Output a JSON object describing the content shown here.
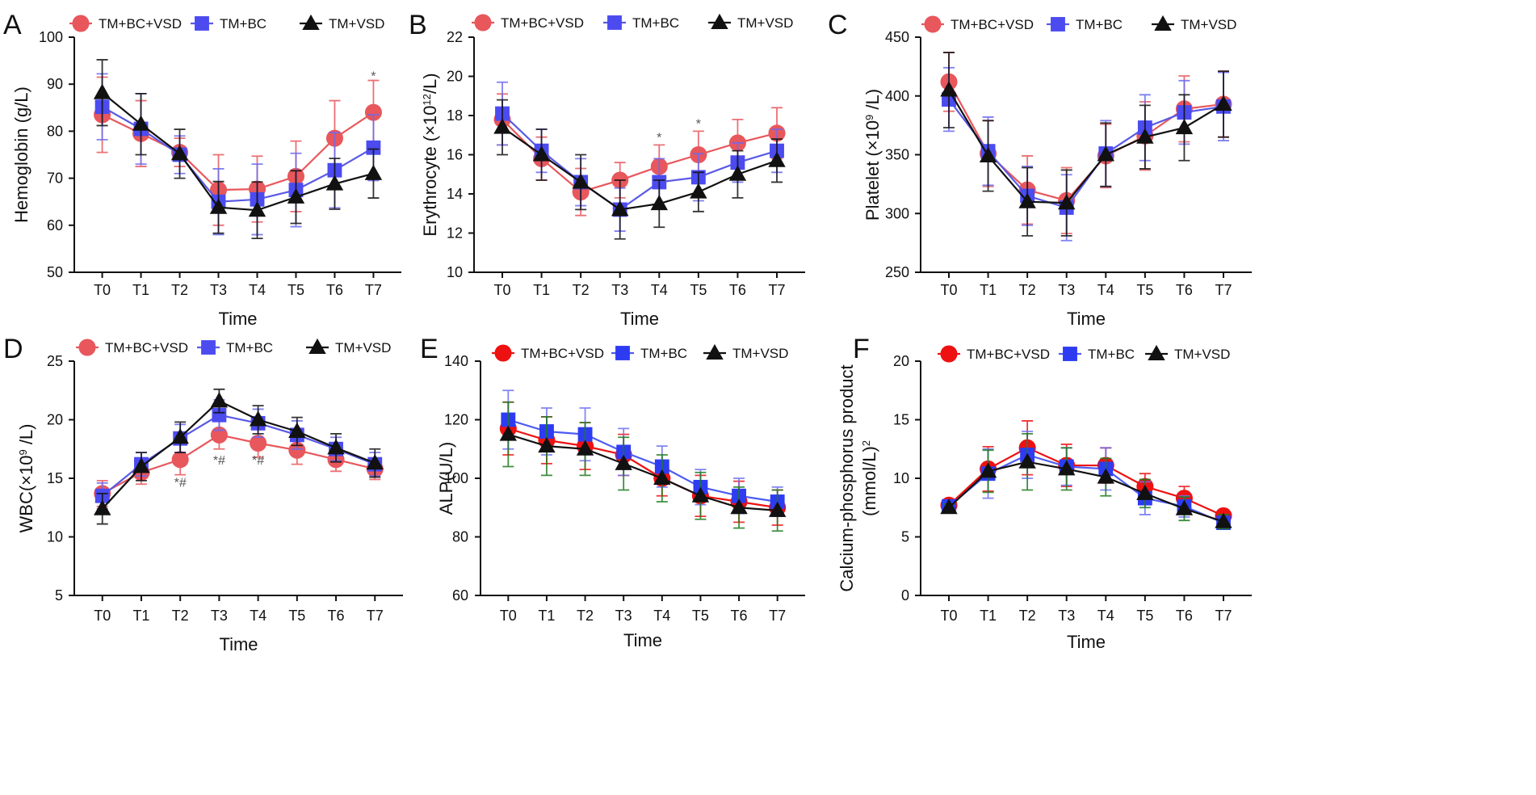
{
  "figure": {
    "series_styles": [
      {
        "name": "TM+BC+VSD",
        "marker": "circle",
        "line_color": "#e8575c",
        "marker_color": "#e8575c",
        "error_color": "#e8575c"
      },
      {
        "name": "TM+BC",
        "marker": "square",
        "line_color": "#5a5ae6",
        "marker_color": "#4b4bf0",
        "error_color": "#6a6af0"
      },
      {
        "name": "TM+VSD",
        "marker": "triangle",
        "line_color": "#111111",
        "marker_color": "#111111",
        "error_color": "#111111"
      }
    ],
    "series_styles_ef": [
      {
        "name": "TM+BC+VSD",
        "marker": "circle",
        "line_color": "#ee1111",
        "marker_color": "#ee1111",
        "error_color": "#ee1111"
      },
      {
        "name": "TM+BC",
        "marker": "square",
        "line_color": "#4d5cf2",
        "marker_color": "#2d3cf2",
        "error_color": "#6d70f2"
      },
      {
        "name": "TM+VSD",
        "marker": "triangle",
        "line_color": "#111111",
        "marker_color": "#111111",
        "error_color": "#1d7a1d"
      }
    ]
  },
  "chart_data": [
    {
      "panel": "A",
      "type": "line",
      "ylabel": "Hemoglobin (g/L)",
      "xlabel": "Time",
      "categories": [
        "T0",
        "T1",
        "T2",
        "T3",
        "T4",
        "T5",
        "T6",
        "T7"
      ],
      "ylim": [
        50,
        100
      ],
      "yticks": [
        50,
        60,
        70,
        80,
        90,
        100
      ],
      "series": [
        {
          "name": "TM+BC+VSD",
          "values": [
            83.5,
            79.5,
            75.5,
            67.5,
            67.7,
            70.4,
            78.5,
            84.0
          ],
          "errors": [
            8,
            7,
            3,
            7.5,
            7,
            7.5,
            8,
            6.8
          ]
        },
        {
          "name": "TM+BC",
          "values": [
            85.2,
            80.5,
            75.0,
            65.0,
            65.5,
            67.5,
            71.7,
            76.5
          ],
          "errors": [
            7,
            7.5,
            4,
            7,
            7.5,
            7.8,
            8,
            7
          ]
        },
        {
          "name": "TM+VSD",
          "values": [
            88.2,
            81.5,
            75.2,
            63.8,
            63.2,
            66.0,
            68.8,
            71.0
          ],
          "errors": [
            7,
            6.5,
            5.2,
            5.5,
            6,
            5.6,
            5.4,
            5.2
          ]
        }
      ],
      "annotations": [
        {
          "category": "T7",
          "value": 91.8,
          "text": "*"
        }
      ]
    },
    {
      "panel": "B",
      "type": "line",
      "ylabel": "Erythrocyte  (×10^12/L)",
      "xlabel": "Time",
      "categories": [
        "T0",
        "T1",
        "T2",
        "T3",
        "T4",
        "T5",
        "T6",
        "T7"
      ],
      "ylim": [
        10,
        22
      ],
      "yticks": [
        10,
        12,
        14,
        16,
        18,
        20,
        22
      ],
      "series": [
        {
          "name": "TM+BC+VSD",
          "values": [
            17.8,
            15.8,
            14.1,
            14.7,
            15.4,
            16.0,
            16.6,
            17.1
          ],
          "errors": [
            1.3,
            1.1,
            1.2,
            0.9,
            1.1,
            1.2,
            1.2,
            1.3
          ]
        },
        {
          "name": "TM+BC",
          "values": [
            18.1,
            16.2,
            14.6,
            13.2,
            14.6,
            14.85,
            15.6,
            16.2
          ],
          "errors": [
            1.6,
            1.1,
            1.2,
            1.1,
            1.2,
            1.2,
            1.0,
            1.1
          ]
        },
        {
          "name": "TM+VSD",
          "values": [
            17.4,
            16.0,
            14.6,
            13.2,
            13.5,
            14.1,
            15.0,
            15.7
          ],
          "errors": [
            1.4,
            1.3,
            1.4,
            1.5,
            1.2,
            1.0,
            1.2,
            1.1
          ]
        }
      ],
      "annotations": [
        {
          "category": "T4",
          "value": 16.9,
          "text": "*"
        },
        {
          "category": "T5",
          "value": 17.6,
          "text": "*"
        }
      ]
    },
    {
      "panel": "C",
      "type": "line",
      "ylabel": "Platelet (×10^9 /L)",
      "xlabel": "Time",
      "categories": [
        "T0",
        "T1",
        "T2",
        "T3",
        "T4",
        "T5",
        "T6",
        "T7"
      ],
      "ylim": [
        250,
        450
      ],
      "yticks": [
        250,
        300,
        350,
        400,
        450
      ],
      "series": [
        {
          "name": "TM+BC+VSD",
          "values": [
            412,
            351,
            320,
            311,
            349,
            366,
            389,
            393
          ],
          "errors": [
            25,
            28,
            29,
            28,
            27,
            29,
            28,
            28
          ]
        },
        {
          "name": "TM+BC",
          "values": [
            397,
            353,
            315,
            305,
            351,
            373,
            386,
            391
          ],
          "errors": [
            27,
            29,
            25,
            28,
            28,
            28,
            27,
            29
          ]
        },
        {
          "name": "TM+VSD",
          "values": [
            405,
            349,
            310,
            309,
            350,
            365,
            373,
            393
          ],
          "errors": [
            32,
            30,
            29,
            28,
            27,
            27,
            28,
            28
          ]
        }
      ],
      "annotations": []
    },
    {
      "panel": "D",
      "type": "line",
      "ylabel": "WBC(×10^9 /L)",
      "xlabel": "Time",
      "categories": [
        "T0",
        "T1",
        "T2",
        "T3",
        "T4",
        "T5",
        "T6",
        "T7"
      ],
      "ylim": [
        5,
        25
      ],
      "yticks": [
        5,
        10,
        15,
        20,
        25
      ],
      "series": [
        {
          "name": "TM+BC+VSD",
          "values": [
            13.7,
            15.5,
            16.6,
            18.7,
            18.0,
            17.4,
            16.6,
            15.8
          ],
          "errors": [
            1.1,
            1.0,
            1.3,
            1.2,
            1.2,
            1.2,
            1.0,
            0.9
          ]
        },
        {
          "name": "TM+BC",
          "values": [
            13.5,
            16.2,
            18.4,
            20.4,
            19.7,
            18.7,
            17.5,
            16.2
          ],
          "errors": [
            1.1,
            1.0,
            1.2,
            1.3,
            1.2,
            1.2,
            1.0,
            1.0
          ]
        },
        {
          "name": "TM+VSD",
          "values": [
            12.4,
            16.0,
            18.5,
            21.6,
            20.0,
            19.0,
            17.6,
            16.3
          ],
          "errors": [
            1.3,
            1.2,
            1.3,
            1.0,
            1.2,
            1.2,
            1.2,
            1.2
          ]
        }
      ],
      "annotations": [
        {
          "category": "T2",
          "value": 14.7,
          "text": "*#"
        },
        {
          "category": "T3",
          "value": 16.6,
          "text": "*#"
        },
        {
          "category": "T4",
          "value": 16.6,
          "text": "*#"
        }
      ]
    },
    {
      "panel": "E",
      "type": "line",
      "ylabel": "ALP(U/L)",
      "xlabel": "Time",
      "categories": [
        "T0",
        "T1",
        "T2",
        "T3",
        "T4",
        "T5",
        "T6",
        "T7"
      ],
      "ylim": [
        60,
        140
      ],
      "yticks": [
        60,
        80,
        100,
        120,
        140
      ],
      "series": [
        {
          "name": "TM+BC+VSD",
          "values": [
            117,
            113,
            111,
            108,
            100,
            94,
            92,
            90
          ],
          "errors": [
            9,
            8,
            8,
            7,
            6,
            7,
            7,
            6
          ]
        },
        {
          "name": "TM+BC",
          "values": [
            120,
            116,
            115,
            109,
            104,
            97,
            94,
            92
          ],
          "errors": [
            10,
            8,
            9,
            8,
            7,
            6,
            6,
            5
          ]
        },
        {
          "name": "TM+VSD",
          "values": [
            115,
            111,
            110,
            105,
            100,
            94,
            90,
            89
          ],
          "errors": [
            11,
            10,
            9,
            9,
            8,
            8,
            7,
            7
          ]
        }
      ],
      "annotations": []
    },
    {
      "panel": "F",
      "type": "line",
      "ylabel": "Calcium-phosphorus product\n(mmol/L)^2",
      "xlabel": "Time",
      "categories": [
        "T0",
        "T1",
        "T2",
        "T3",
        "T4",
        "T5",
        "T6",
        "T7"
      ],
      "ylim": [
        0,
        20
      ],
      "yticks": [
        0,
        5,
        10,
        15,
        20
      ],
      "series": [
        {
          "name": "TM+BC+VSD",
          "values": [
            7.7,
            10.8,
            12.6,
            11.1,
            11.1,
            9.3,
            8.3,
            6.8
          ],
          "errors": [
            0.3,
            1.9,
            2.3,
            1.8,
            1.5,
            1.1,
            1.0,
            0.4
          ]
        },
        {
          "name": "TM+BC",
          "values": [
            7.6,
            10.4,
            12.0,
            11.0,
            10.8,
            8.3,
            7.6,
            6.2
          ],
          "errors": [
            0.3,
            2.1,
            2.0,
            1.6,
            1.8,
            1.4,
            0.9,
            0.5
          ]
        },
        {
          "name": "TM+VSD",
          "values": [
            7.5,
            10.6,
            11.4,
            10.8,
            10.1,
            8.7,
            7.4,
            6.3
          ],
          "errors": [
            0.3,
            1.8,
            2.4,
            1.8,
            1.6,
            1.2,
            1.0,
            0.6
          ]
        }
      ],
      "annotations": []
    }
  ]
}
